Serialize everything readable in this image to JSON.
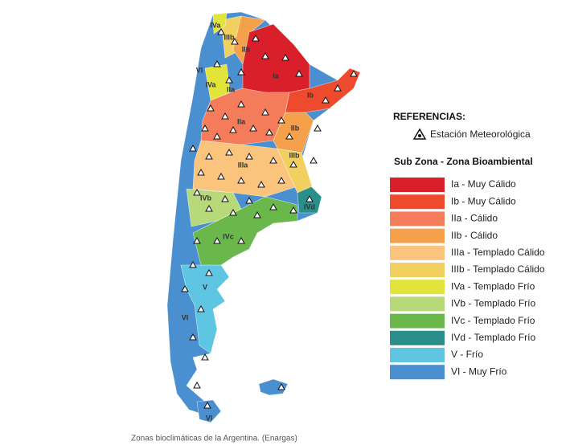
{
  "map": {
    "labels": [
      "IVa",
      "IIIb",
      "IIb",
      "VI",
      "IVa",
      "IIa",
      "Ia",
      "Ib",
      "IIa",
      "IIb",
      "IIIb",
      "IIIa",
      "IVb",
      "IVd",
      "IVc",
      "V",
      "VI",
      "VI"
    ]
  },
  "legend": {
    "title": "REFERENCIAS:",
    "station": "Estación Meteorológica",
    "subtitle": "Sub Zona - Zona Bioambiental",
    "items": [
      {
        "label": "Ia - Muy Cálido",
        "color": "#d81f2a"
      },
      {
        "label": "Ib - Muy Cálido",
        "color": "#ee4a2e"
      },
      {
        "label": "IIa - Cálido",
        "color": "#f47c5a"
      },
      {
        "label": "IIb - Cálido",
        "color": "#f5a04a"
      },
      {
        "label": "IIIa - Templado Cálido",
        "color": "#fbc47c"
      },
      {
        "label": "IIIb - Templado Cálido",
        "color": "#f1d060"
      },
      {
        "label": "IVa - Templado Frío",
        "color": "#e3e43a"
      },
      {
        "label": "IVb - Templado Frío",
        "color": "#b7d97a"
      },
      {
        "label": "IVc - Templado Frío",
        "color": "#6ab84c"
      },
      {
        "label": "IVd - Templado Frío",
        "color": "#2a8f8a"
      },
      {
        "label": "V - Frío",
        "color": "#5ec6e3"
      },
      {
        "label": "VI - Muy Frío",
        "color": "#4a8fd0"
      }
    ]
  },
  "caption": "Zonas bioclimáticas de la Argentina. (Enargas)"
}
